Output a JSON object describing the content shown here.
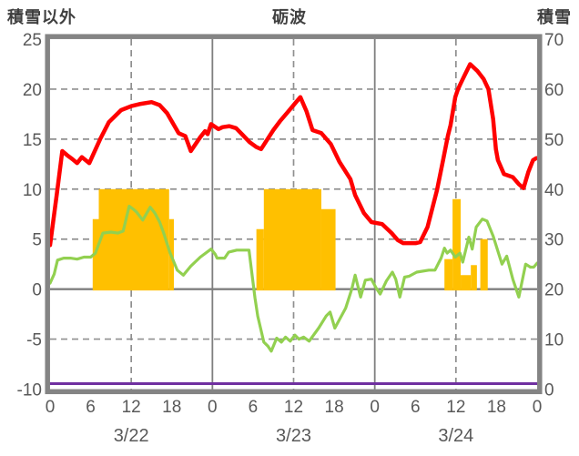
{
  "header": {
    "left_label": "積雪以外",
    "title": "砺波",
    "right_label": "積雪"
  },
  "colors": {
    "red_line": "#ff0000",
    "green_line": "#92d050",
    "orange_bars": "#ffc000",
    "purple_line": "#7030a0",
    "axis_border": "#848484",
    "gridline": "#8f8f8f",
    "tick_text": "#595959",
    "header_text": "#3f3f3f"
  },
  "chart_data": {
    "type": "line",
    "title": "砺波",
    "left_axis_label": "積雪以外",
    "right_axis_label": "積雪",
    "grid": "on",
    "legend": "none",
    "x_axis": {
      "unit": "hour",
      "range_hours": [
        0,
        72
      ],
      "tick_hours": [
        0,
        6,
        12,
        18,
        24,
        30,
        36,
        42,
        48,
        54,
        60,
        66,
        72
      ],
      "tick_labels": [
        "0",
        "6",
        "12",
        "18",
        "0",
        "6",
        "12",
        "18",
        "0",
        "6",
        "12",
        "18",
        "0"
      ],
      "date_labels": [
        {
          "label": "3/22",
          "hour": 12
        },
        {
          "label": "3/23",
          "hour": 36
        },
        {
          "label": "3/24",
          "hour": 60
        }
      ],
      "dashed_gridline_hours": [
        12,
        36,
        60
      ],
      "solid_gridline_hours": [
        24,
        48
      ]
    },
    "left_axis": {
      "range": [
        -10,
        25
      ],
      "ticks": [
        25,
        20,
        15,
        10,
        5,
        0,
        -5,
        -10
      ],
      "dashed_gridlines": [
        20,
        15,
        10,
        5,
        -5
      ],
      "solid_gridlines": [
        0
      ]
    },
    "right_axis": {
      "range": [
        0,
        70
      ],
      "ticks": [
        70,
        60,
        50,
        40,
        30,
        20,
        10,
        0
      ]
    },
    "series": [
      {
        "name": "orange-bars",
        "type": "bars",
        "axis": "left",
        "color": "#ffc000",
        "segments": [
          [
            6.3,
            7.2,
            7
          ],
          [
            7.2,
            17.6,
            10
          ],
          [
            17.6,
            18.3,
            7
          ],
          [
            30.5,
            31.6,
            6
          ],
          [
            31.6,
            40.1,
            10
          ],
          [
            40.1,
            42.2,
            8
          ],
          [
            58.3,
            59.5,
            3
          ],
          [
            59.5,
            60.7,
            9
          ],
          [
            60.7,
            62.2,
            1.4
          ],
          [
            62.2,
            63.1,
            2.4
          ],
          [
            63.6,
            64.7,
            5
          ]
        ]
      },
      {
        "name": "purple-line",
        "type": "line",
        "axis": "right",
        "color": "#7030a0",
        "width": 3,
        "points": [
          [
            0,
            0
          ],
          [
            72,
            0
          ]
        ]
      },
      {
        "name": "green-line",
        "type": "line",
        "axis": "left",
        "color": "#92d050",
        "width": 3.2,
        "points": [
          [
            0,
            0.6
          ],
          [
            0.6,
            1.5
          ],
          [
            1.1,
            2.9
          ],
          [
            2,
            3.1
          ],
          [
            3,
            3.1
          ],
          [
            4,
            3.0
          ],
          [
            5,
            3.2
          ],
          [
            6,
            3.2
          ],
          [
            6.7,
            3.6
          ],
          [
            7.8,
            5.6
          ],
          [
            9,
            5.7
          ],
          [
            10,
            5.6
          ],
          [
            10.8,
            5.8
          ],
          [
            11.7,
            8.3
          ],
          [
            12.3,
            8.0
          ],
          [
            12.8,
            7.7
          ],
          [
            13.7,
            6.9
          ],
          [
            14.8,
            8.2
          ],
          [
            15.5,
            7.6
          ],
          [
            16.2,
            6.7
          ],
          [
            16.8,
            5.6
          ],
          [
            17.7,
            3.7
          ],
          [
            18.8,
            1.9
          ],
          [
            19.7,
            1.4
          ],
          [
            20.8,
            2.3
          ],
          [
            22.2,
            3.2
          ],
          [
            23.8,
            4.0
          ],
          [
            24.4,
            3.5
          ],
          [
            24.7,
            3.1
          ],
          [
            25.8,
            3.1
          ],
          [
            26.4,
            3.7
          ],
          [
            27.6,
            3.9
          ],
          [
            29.4,
            3.9
          ],
          [
            30.3,
            -0.9
          ],
          [
            30.7,
            -2.7
          ],
          [
            31.6,
            -5.3
          ],
          [
            32.2,
            -5.7
          ],
          [
            32.7,
            -6.2
          ],
          [
            33.5,
            -4.9
          ],
          [
            34.2,
            -5.3
          ],
          [
            34.8,
            -4.8
          ],
          [
            35.5,
            -5.2
          ],
          [
            36.2,
            -4.6
          ],
          [
            36.8,
            -5.0
          ],
          [
            37.5,
            -4.8
          ],
          [
            38.3,
            -5.2
          ],
          [
            39.7,
            -3.9
          ],
          [
            40.8,
            -2.7
          ],
          [
            41.4,
            -2.3
          ],
          [
            42.1,
            -3.9
          ],
          [
            43.7,
            -1.9
          ],
          [
            44.6,
            0.0
          ],
          [
            45.1,
            1.4
          ],
          [
            45.9,
            -0.8
          ],
          [
            46.6,
            0.9
          ],
          [
            47.5,
            1.0
          ],
          [
            48.2,
            0.1
          ],
          [
            48.8,
            -0.5
          ],
          [
            49.7,
            0.8
          ],
          [
            50.6,
            1.7
          ],
          [
            51.1,
            1.0
          ],
          [
            51.7,
            -0.8
          ],
          [
            52.4,
            1.2
          ],
          [
            53.1,
            1.3
          ],
          [
            54.2,
            1.7
          ],
          [
            56,
            1.9
          ],
          [
            56.9,
            1.9
          ],
          [
            57.8,
            3.1
          ],
          [
            58.3,
            4.1
          ],
          [
            58.7,
            3.6
          ],
          [
            59.2,
            3.9
          ],
          [
            59.9,
            3.2
          ],
          [
            60.6,
            3.6
          ],
          [
            61,
            2.7
          ],
          [
            61.9,
            5.2
          ],
          [
            62.4,
            4.0
          ],
          [
            63,
            6.2
          ],
          [
            63.9,
            7.0
          ],
          [
            64.6,
            6.8
          ],
          [
            65.5,
            5.3
          ],
          [
            66.8,
            2.5
          ],
          [
            67.5,
            3.3
          ],
          [
            68.4,
            1.0
          ],
          [
            69.3,
            -0.8
          ],
          [
            70.3,
            2.5
          ],
          [
            71,
            2.2
          ],
          [
            71.5,
            2.2
          ],
          [
            72,
            2.6
          ]
        ]
      },
      {
        "name": "red-line",
        "type": "line",
        "axis": "left",
        "color": "#ff0000",
        "width": 4.5,
        "points": [
          [
            0,
            4.4
          ],
          [
            1,
            9.5
          ],
          [
            1.8,
            13.8
          ],
          [
            2.5,
            13.4
          ],
          [
            3.3,
            13.0
          ],
          [
            4,
            12.6
          ],
          [
            4.7,
            13.2
          ],
          [
            5.8,
            12.6
          ],
          [
            7.4,
            15.0
          ],
          [
            8.7,
            16.7
          ],
          [
            10.5,
            17.9
          ],
          [
            12,
            18.3
          ],
          [
            13.2,
            18.5
          ],
          [
            15,
            18.7
          ],
          [
            16.2,
            18.4
          ],
          [
            17.3,
            17.6
          ],
          [
            19,
            15.6
          ],
          [
            20,
            15.3
          ],
          [
            20.8,
            13.8
          ],
          [
            22.2,
            15.2
          ],
          [
            22.9,
            15.8
          ],
          [
            23.3,
            15.5
          ],
          [
            23.8,
            16.5
          ],
          [
            24.9,
            16.0
          ],
          [
            25.5,
            16.2
          ],
          [
            26.5,
            16.3
          ],
          [
            27.5,
            16.1
          ],
          [
            28.5,
            15.4
          ],
          [
            29.5,
            14.7
          ],
          [
            30.5,
            14.2
          ],
          [
            31.2,
            14.0
          ],
          [
            33,
            15.9
          ],
          [
            34,
            16.8
          ],
          [
            35,
            17.6
          ],
          [
            36,
            18.4
          ],
          [
            37,
            19.2
          ],
          [
            37.9,
            17.8
          ],
          [
            38.8,
            15.9
          ],
          [
            40.1,
            15.6
          ],
          [
            41.5,
            14.5
          ],
          [
            42.8,
            12.7
          ],
          [
            44.4,
            11.0
          ],
          [
            45.1,
            9.4
          ],
          [
            46.4,
            7.6
          ],
          [
            47.5,
            6.7
          ],
          [
            49.1,
            6.5
          ],
          [
            50.5,
            5.6
          ],
          [
            51.4,
            4.9
          ],
          [
            52.2,
            4.6
          ],
          [
            54.1,
            4.6
          ],
          [
            54.7,
            4.7
          ],
          [
            55.8,
            6.2
          ],
          [
            57.2,
            9.9
          ],
          [
            58.1,
            12.9
          ],
          [
            58.8,
            15.3
          ],
          [
            59.2,
            16.4
          ],
          [
            59.9,
            19.2
          ],
          [
            60.3,
            20.0
          ],
          [
            61,
            21.0
          ],
          [
            62.1,
            22.5
          ],
          [
            63.2,
            21.8
          ],
          [
            64.1,
            21.0
          ],
          [
            64.8,
            20.0
          ],
          [
            65.5,
            17.0
          ],
          [
            65.9,
            14.0
          ],
          [
            66.2,
            12.9
          ],
          [
            67.1,
            11.5
          ],
          [
            68.4,
            11.2
          ],
          [
            69.3,
            10.5
          ],
          [
            70,
            10.1
          ],
          [
            70.7,
            11.7
          ],
          [
            71.4,
            12.9
          ],
          [
            71.9,
            13.1
          ]
        ]
      }
    ]
  }
}
